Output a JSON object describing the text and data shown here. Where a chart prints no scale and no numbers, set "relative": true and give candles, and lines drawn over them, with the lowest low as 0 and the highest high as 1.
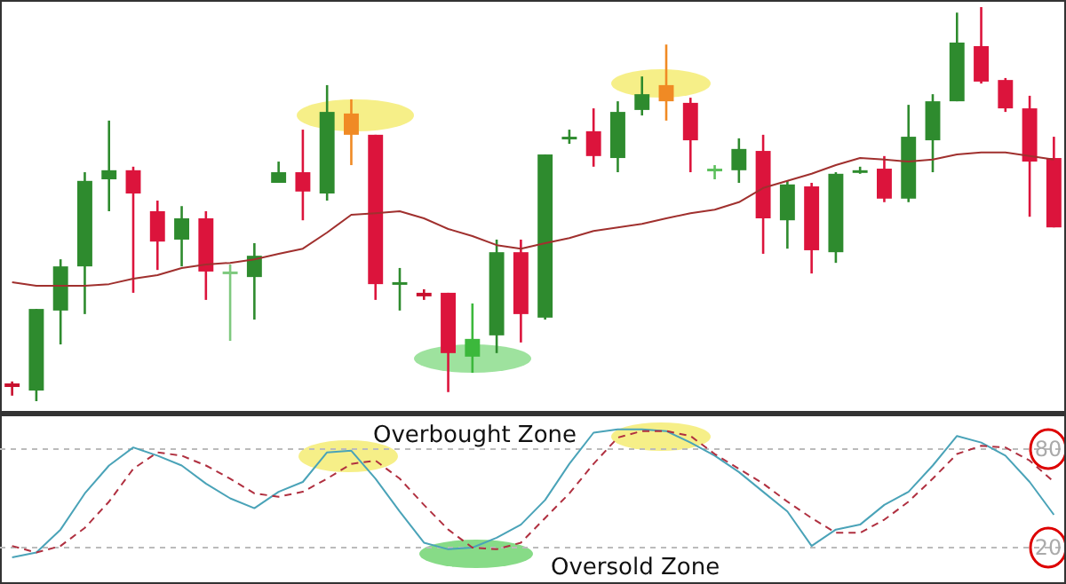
{
  "chart_data": [
    {
      "type": "candlestick",
      "relative": true,
      "categories": [
        null,
        null,
        null,
        null,
        null,
        null,
        null,
        null,
        null,
        null,
        null,
        null,
        null,
        null,
        null,
        null,
        null,
        null,
        null,
        null,
        null,
        null,
        null,
        null,
        null,
        null,
        null,
        null,
        null,
        null,
        null,
        null,
        null,
        null,
        null,
        null,
        null,
        null,
        null,
        null,
        null,
        null,
        null,
        null
      ],
      "ohlc": [
        [
          0.045,
          0.05,
          0.014,
          0.036
        ],
        [
          0.027,
          0.234,
          0,
          0.234
        ],
        [
          0.23,
          0.36,
          0.144,
          0.342
        ],
        [
          0.342,
          0.581,
          0.221,
          0.559
        ],
        [
          0.563,
          0.712,
          0.482,
          0.586
        ],
        [
          0.586,
          0.595,
          0.275,
          0.527
        ],
        [
          0.482,
          0.509,
          0.333,
          0.405
        ],
        [
          0.41,
          0.495,
          0.342,
          0.464
        ],
        [
          0.464,
          0.482,
          0.257,
          0.329
        ],
        [
          0.327,
          0.347,
          0.153,
          0.329
        ],
        [
          0.315,
          0.401,
          0.207,
          0.369
        ],
        [
          0.554,
          0.608,
          0.554,
          0.581
        ],
        [
          0.581,
          0.689,
          0.459,
          0.532
        ],
        [
          0.527,
          0.802,
          0.509,
          0.734
        ],
        [
          0.73,
          0.766,
          0.599,
          0.676
        ],
        [
          0.676,
          0.676,
          0.257,
          0.297
        ],
        [
          0.297,
          0.338,
          0.23,
          0.302
        ],
        [
          0.275,
          0.284,
          0.257,
          0.266
        ],
        [
          0.275,
          0.275,
          0.023,
          0.122
        ],
        [
          0.113,
          0.248,
          0.072,
          0.158
        ],
        [
          0.167,
          0.41,
          0.122,
          0.378
        ],
        [
          0.378,
          0.41,
          0.149,
          0.221
        ],
        [
          0.212,
          0.626,
          0.207,
          0.626
        ],
        [
          0.669,
          0.689,
          0.653,
          0.671
        ],
        [
          0.685,
          0.743,
          0.595,
          0.622
        ],
        [
          0.617,
          0.761,
          0.581,
          0.734
        ],
        [
          0.739,
          0.824,
          0.725,
          0.779
        ],
        [
          0.802,
          0.905,
          0.712,
          0.761
        ],
        [
          0.757,
          0.77,
          0.581,
          0.662
        ],
        [
          0.588,
          0.599,
          0.563,
          0.59
        ],
        [
          0.586,
          0.667,
          0.554,
          0.64
        ],
        [
          0.635,
          0.676,
          0.374,
          0.464
        ],
        [
          0.459,
          0.559,
          0.387,
          0.55
        ],
        [
          0.545,
          0.554,
          0.324,
          0.383
        ],
        [
          0.378,
          0.581,
          0.351,
          0.577
        ],
        [
          0.581,
          0.595,
          0.577,
          0.586
        ],
        [
          0.59,
          0.622,
          0.505,
          0.514
        ],
        [
          0.514,
          0.752,
          0.505,
          0.671
        ],
        [
          0.662,
          0.779,
          0.581,
          0.761
        ],
        [
          0.761,
          0.986,
          0.761,
          0.91
        ],
        [
          0.901,
          1,
          0.806,
          0.811
        ],
        [
          0.815,
          0.82,
          0.734,
          0.743
        ],
        [
          0.743,
          0.775,
          0.468,
          0.608
        ],
        [
          0.617,
          0.671,
          0.441,
          0.441
        ]
      ],
      "colors": [
        "#c8102e",
        "#2e8b2e",
        "#2e8b2e",
        "#2e8b2e",
        "#2e8b2e",
        "#dc143c",
        "#dc143c",
        "#2e8b2e",
        "#dc143c",
        "#7fc97f",
        "#2e8b2e",
        "#2e8b2e",
        "#dc143c",
        "#2e8b2e",
        "#f08a24",
        "#dc143c",
        "#2e8b2e",
        "#c8102e",
        "#dc143c",
        "#3cb83c",
        "#2e8b2e",
        "#dc143c",
        "#2e8b2e",
        "#2e8b2e",
        "#dc143c",
        "#2e8b2e",
        "#2e8b2e",
        "#f08a24",
        "#dc143c",
        "#5cbf5c",
        "#2e8b2e",
        "#dc143c",
        "#2e8b2e",
        "#dc143c",
        "#2e8b2e",
        "#2e8b2e",
        "#dc143c",
        "#2e8b2e",
        "#2e8b2e",
        "#2e8b2e",
        "#dc143c",
        "#dc143c",
        "#dc143c",
        "#dc143c"
      ],
      "series": [
        {
          "type": "line",
          "color": "#a0302e",
          "values": [
            0.302,
            0.293,
            0.293,
            0.293,
            0.297,
            0.311,
            0.32,
            0.338,
            0.347,
            0.351,
            0.36,
            0.374,
            0.387,
            0.428,
            0.473,
            0.477,
            0.482,
            0.464,
            0.437,
            0.419,
            0.396,
            0.387,
            0.401,
            0.414,
            0.432,
            0.441,
            0.45,
            0.464,
            0.477,
            0.486,
            0.505,
            0.541,
            0.559,
            0.577,
            0.599,
            0.617,
            0.613,
            0.608,
            0.613,
            0.626,
            0.631,
            0.631,
            0.622,
            0.613
          ]
        }
      ]
    },
    {
      "type": "line",
      "ylim": [
        0,
        100
      ],
      "yticks": [
        20,
        80
      ],
      "grid": "y",
      "tick_labels": "y",
      "annotations": [
        "Overbought Zone",
        "Oversold Zone"
      ],
      "categories": [
        null,
        null,
        null,
        null,
        null,
        null,
        null,
        null,
        null,
        null,
        null,
        null,
        null,
        null,
        null,
        null,
        null,
        null,
        null,
        null,
        null,
        null,
        null,
        null,
        null,
        null,
        null,
        null,
        null,
        null,
        null,
        null,
        null,
        null,
        null,
        null,
        null,
        null,
        null,
        null,
        null,
        null,
        null,
        null
      ],
      "series": [
        {
          "color": "#4aa3b8",
          "line_style": "solid",
          "values": [
            14,
            17,
            31,
            53,
            70,
            81,
            76,
            70,
            59,
            50,
            44,
            54,
            60,
            78,
            79,
            62,
            42,
            23,
            19,
            20,
            26,
            34,
            49,
            71,
            90,
            92,
            92,
            91,
            84,
            76,
            66,
            54,
            42,
            21,
            31,
            34,
            46,
            54,
            70,
            88,
            84,
            76,
            60,
            40
          ]
        },
        {
          "color": "#b03040",
          "line_style": "dashed",
          "values": [
            21,
            17,
            21,
            32,
            48,
            68,
            78,
            76,
            70,
            62,
            53,
            51,
            54,
            62,
            71,
            73,
            62,
            46,
            31,
            20,
            19,
            23,
            38,
            53,
            71,
            87,
            91,
            91,
            88,
            77,
            68,
            59,
            48,
            38,
            29,
            29,
            37,
            48,
            62,
            77,
            82,
            81,
            73,
            60
          ]
        }
      ]
    }
  ]
}
